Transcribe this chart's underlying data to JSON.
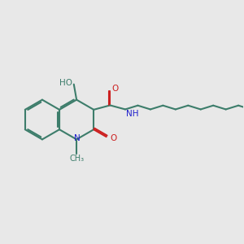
{
  "bg_color": "#e8e8e8",
  "bond_color": "#3d7d6b",
  "bond_width": 1.5,
  "N_color": "#2020cc",
  "O_color": "#cc2020",
  "figsize": [
    3.0,
    3.0
  ],
  "dpi": 100,
  "xlim": [
    0,
    10
  ],
  "ylim": [
    0,
    10
  ],
  "bl": 0.82,
  "bcx": 1.7,
  "bcy": 5.1
}
